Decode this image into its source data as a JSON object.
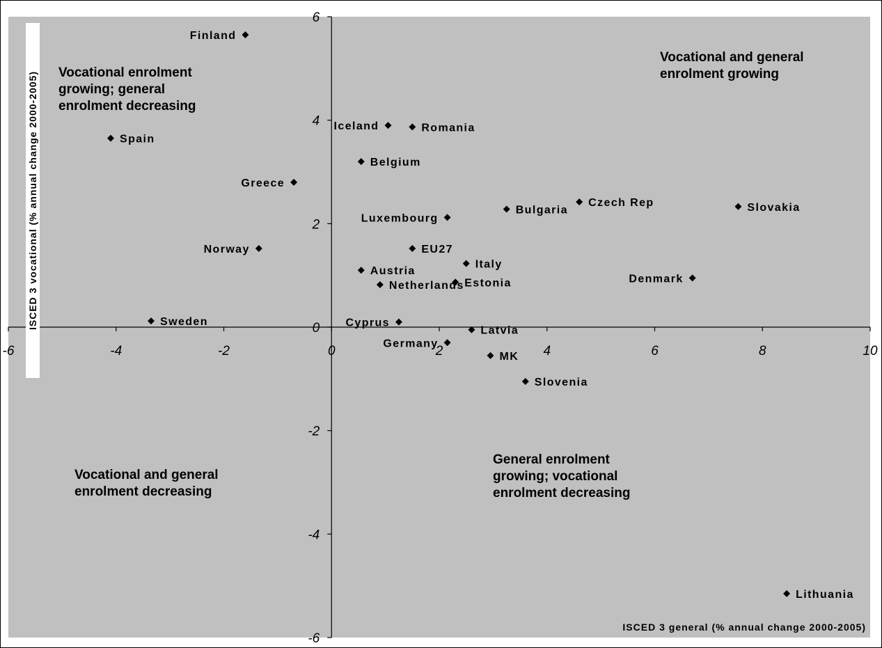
{
  "chart_data": {
    "type": "scatter",
    "xlabel": "ISCED 3 general (% annual change 2000-2005)",
    "ylabel": "ISCED 3 vocational (% annual change 2000-2005)",
    "xlim": [
      -6,
      10
    ],
    "ylim": [
      -6,
      6
    ],
    "x_ticks": [
      -6,
      -4,
      -2,
      0,
      2,
      4,
      6,
      8,
      10
    ],
    "y_ticks": [
      -6,
      -4,
      -2,
      0,
      2,
      4,
      6
    ],
    "grid": false,
    "highlight_color": "#e8302a",
    "marker_color": "#000000",
    "background_color": "#c0c0c0",
    "points": [
      {
        "label": "Finland",
        "x": -1.6,
        "y": 5.65,
        "label_side": "left"
      },
      {
        "label": "Spain",
        "x": -4.1,
        "y": 3.65,
        "label_side": "right"
      },
      {
        "label": "Iceland",
        "x": 1.05,
        "y": 3.9,
        "label_side": "left"
      },
      {
        "label": "Romania",
        "x": 1.5,
        "y": 3.87,
        "label_side": "right"
      },
      {
        "label": "Belgium",
        "x": 0.55,
        "y": 3.2,
        "label_side": "right"
      },
      {
        "label": "Greece",
        "x": -0.7,
        "y": 2.8,
        "label_side": "left"
      },
      {
        "label": "Luxembourg",
        "x": 2.15,
        "y": 2.12,
        "label_side": "left"
      },
      {
        "label": "Bulgaria",
        "x": 3.25,
        "y": 2.28,
        "label_side": "right"
      },
      {
        "label": "Czech Rep",
        "x": 4.6,
        "y": 2.42,
        "label_side": "right"
      },
      {
        "label": "Slovakia",
        "x": 7.55,
        "y": 2.33,
        "label_side": "right"
      },
      {
        "label": "Norway",
        "x": -1.35,
        "y": 1.52,
        "label_side": "left"
      },
      {
        "label": "EU27",
        "x": 1.5,
        "y": 1.52,
        "label_side": "right",
        "highlight": true
      },
      {
        "label": "Italy",
        "x": 2.5,
        "y": 1.23,
        "label_side": "right"
      },
      {
        "label": "Austria",
        "x": 0.55,
        "y": 1.1,
        "label_side": "right"
      },
      {
        "label": "Estonia",
        "x": 2.3,
        "y": 0.87,
        "label_side": "right"
      },
      {
        "label": "Denmark",
        "x": 6.7,
        "y": 0.95,
        "label_side": "left"
      },
      {
        "label": "Netherlands",
        "x": 0.9,
        "y": 0.82,
        "label_side": "right"
      },
      {
        "label": "Sweden",
        "x": -3.35,
        "y": 0.12,
        "label_side": "right"
      },
      {
        "label": "Cyprus",
        "x": 1.25,
        "y": 0.1,
        "label_side": "left"
      },
      {
        "label": "Latvia",
        "x": 2.6,
        "y": -0.05,
        "label_side": "right"
      },
      {
        "label": "Germany",
        "x": 2.15,
        "y": -0.3,
        "label_side": "left"
      },
      {
        "label": "MK",
        "x": 2.95,
        "y": -0.55,
        "label_side": "right"
      },
      {
        "label": "Slovenia",
        "x": 3.6,
        "y": -1.05,
        "label_side": "right"
      },
      {
        "label": "Lithuania",
        "x": 8.45,
        "y": -5.15,
        "label_side": "right"
      }
    ],
    "annotations": [
      {
        "lines": [
          "Vocational and general",
          "enrolment growing"
        ]
      },
      {
        "lines": [
          "Vocational enrolment",
          "growing; general",
          "enrolment decreasing"
        ]
      },
      {
        "lines": [
          "Vocational and general",
          "enrolment decreasing"
        ]
      },
      {
        "lines": [
          "General enrolment",
          "growing; vocational",
          "enrolment decreasing"
        ]
      }
    ]
  }
}
